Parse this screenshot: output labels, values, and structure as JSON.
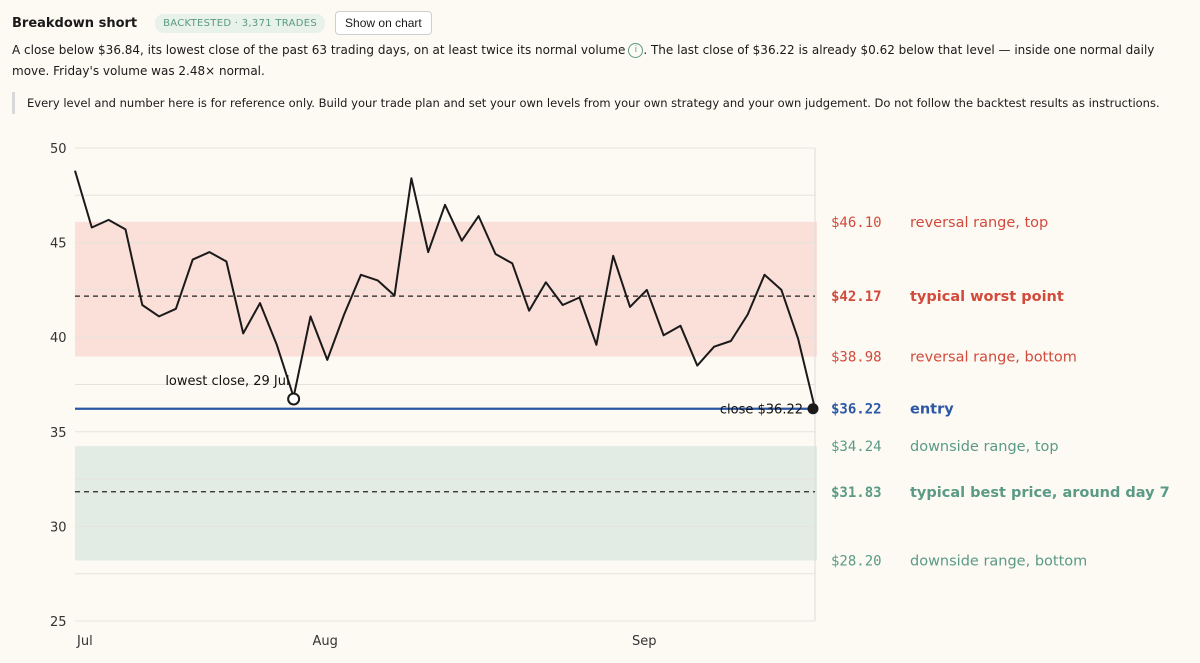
{
  "header": {
    "title": "Breakdown short",
    "badge": "BACKTESTED · 3,371 TRADES",
    "button": "Show on chart"
  },
  "description": {
    "text1": "A close below $36.84, its lowest close of the past 63 trading days, on at least twice its normal volume",
    "info_icon": "info-icon",
    "text2": ". The last close of $36.22 is already $0.62 below that level — inside one normal daily move. Friday's volume was 2.48× normal."
  },
  "note": "Every level and number here is for reference only. Build your trade plan and set your own levels from your own strategy and your own judgement. Do not follow the backtest results as instructions.",
  "colors": {
    "reversal_band": "#fbdfd9",
    "downside_band": "#e2ece5",
    "entry": "#2b57a6",
    "red_text": "#d14a3c",
    "green_text": "#5a9a86",
    "line": "#1a1a1a"
  },
  "chart_data": {
    "type": "line",
    "ylim": [
      25,
      50
    ],
    "yticks": [
      25,
      30,
      35,
      40,
      45,
      50
    ],
    "xticks": [
      {
        "index": 0,
        "label": "Jul"
      },
      {
        "index": 14,
        "label": "Aug"
      },
      {
        "index": 33,
        "label": "Sep"
      }
    ],
    "grid": true,
    "series": [
      {
        "values": [
          48.8,
          45.8,
          46.2,
          45.7,
          41.7,
          41.1,
          41.5,
          44.1,
          44.5,
          44.0,
          40.2,
          41.8,
          39.6,
          36.84,
          41.1,
          38.8,
          41.2,
          43.3,
          43.0,
          42.2,
          48.4,
          44.5,
          47.0,
          45.1,
          46.4,
          44.4,
          43.9,
          41.4,
          42.9,
          41.7,
          42.1,
          39.6,
          44.3,
          41.6,
          42.5,
          40.1,
          40.6,
          38.5,
          39.5,
          39.8,
          41.2,
          43.3,
          42.5,
          39.9,
          36.22
        ]
      }
    ],
    "bands": [
      {
        "from": 38.98,
        "to": 46.1,
        "kind": "reversal"
      },
      {
        "from": 28.2,
        "to": 34.24,
        "kind": "downside"
      }
    ],
    "levels": [
      {
        "value": 46.1,
        "price": "$46.10",
        "label": "reversal range, top",
        "style": "none",
        "color": "red",
        "bold": false
      },
      {
        "value": 42.17,
        "price": "$42.17",
        "label": "typical worst point",
        "style": "dashed",
        "color": "red",
        "bold": true
      },
      {
        "value": 38.98,
        "price": "$38.98",
        "label": "reversal range, bottom",
        "style": "none",
        "color": "red",
        "bold": false
      },
      {
        "value": 36.22,
        "price": "$36.22",
        "label": "entry",
        "style": "solid",
        "color": "blue",
        "bold": true
      },
      {
        "value": 34.24,
        "price": "$34.24",
        "label": "downside range, top",
        "style": "none",
        "color": "green",
        "bold": false
      },
      {
        "value": 31.83,
        "price": "$31.83",
        "label": "typical best price, around day 7",
        "style": "dashed",
        "color": "green",
        "bold": true
      },
      {
        "value": 28.2,
        "price": "$28.20",
        "label": "downside range, bottom",
        "style": "none",
        "color": "green",
        "bold": false
      }
    ],
    "annotations": [
      {
        "index": 13,
        "value": 36.84,
        "text": "lowest close, 29 Jul",
        "marker": "open-circle"
      },
      {
        "index": 44,
        "value": 36.22,
        "text": "close $36.22",
        "marker": "filled-circle"
      }
    ]
  }
}
